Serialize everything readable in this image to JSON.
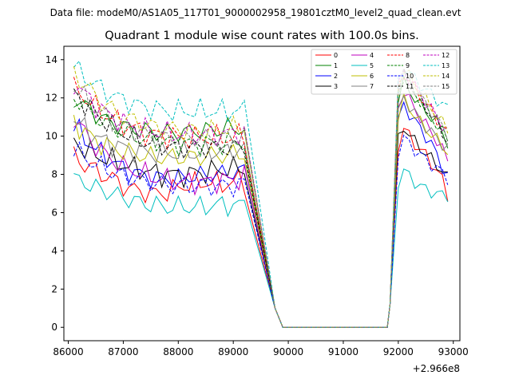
{
  "header": {
    "data_file": "Data file: modeM0/AS1A05_117T01_9000002958_19801cztM0_level2_quad_clean.evt"
  },
  "chart_data": {
    "type": "line",
    "title": "Quadrant 1 module wise count rates with 100.0s bins.",
    "xlabel": "",
    "ylabel": "",
    "x_offset_label": "+2.966e8",
    "xlim": [
      85920,
      93120
    ],
    "ylim": [
      -0.7,
      14.7
    ],
    "x_ticks": [
      86000,
      87000,
      88000,
      89000,
      90000,
      91000,
      92000,
      93000
    ],
    "x_tick_labels": [
      "86000",
      "87000",
      "88000",
      "89000",
      "90000",
      "91000",
      "92000",
      "93000"
    ],
    "y_ticks": [
      0,
      2,
      4,
      6,
      8,
      10,
      12,
      14
    ],
    "y_tick_labels": [
      "0",
      "2",
      "4",
      "6",
      "8",
      "10",
      "12",
      "14"
    ],
    "x_start": 86100,
    "x_step": 100,
    "gap": {
      "drop_start": 89700,
      "zero_from": 89900,
      "zero_to": 91800,
      "rise_end": 92000
    },
    "legend_location": "upper right",
    "series": [
      {
        "name": "0",
        "color": "#ff0000",
        "dash": "solid",
        "before": [
          9.0,
          8.7,
          8.5,
          8.4,
          8.2,
          8.0,
          7.9,
          7.8,
          7.6,
          7.4,
          7.3,
          7.2,
          7.1,
          7.1,
          7.0,
          7.0,
          7.0,
          7.1,
          7.2,
          7.3,
          7.4,
          7.5,
          7.5,
          7.5,
          7.6,
          7.6,
          7.5,
          7.5,
          7.5,
          7.6,
          7.7,
          7.7
        ],
        "after": [
          9.5,
          10.4,
          10.0,
          9.6,
          9.3,
          9.0,
          8.6,
          8.2,
          7.7,
          6.9
        ]
      },
      {
        "name": "1",
        "color": "#008000",
        "dash": "solid",
        "before": [
          12.0,
          11.8,
          11.6,
          11.4,
          11.2,
          11.0,
          10.8,
          10.7,
          10.6,
          10.5,
          10.4,
          10.4,
          10.3,
          10.3,
          10.2,
          10.2,
          10.2,
          10.2,
          10.2,
          10.2,
          10.2,
          10.2,
          10.3,
          10.3,
          10.3,
          10.3,
          10.3,
          10.4,
          10.4,
          10.4,
          10.4,
          10.4
        ],
        "after": [
          12.0,
          12.8,
          12.4,
          12.0,
          11.6,
          11.3,
          11.0,
          10.7,
          10.3,
          9.6
        ]
      },
      {
        "name": "2",
        "color": "#0000ff",
        "dash": "solid",
        "before": [
          10.5,
          10.2,
          9.9,
          9.6,
          9.3,
          9.1,
          8.9,
          8.7,
          8.5,
          8.3,
          8.2,
          8.1,
          8.0,
          7.9,
          7.9,
          7.8,
          7.8,
          7.8,
          7.8,
          7.8,
          7.8,
          7.9,
          7.9,
          7.9,
          8.0,
          8.0,
          8.0,
          8.0,
          8.1,
          8.1,
          8.1,
          8.2
        ],
        "after": [
          10.8,
          11.6,
          11.2,
          10.8,
          10.4,
          10.0,
          9.6,
          9.0,
          8.4,
          7.9
        ]
      },
      {
        "name": "3",
        "color": "#000000",
        "dash": "solid",
        "before": [
          9.8,
          9.5,
          9.3,
          9.1,
          9.0,
          8.9,
          8.8,
          8.7,
          8.6,
          8.5,
          8.4,
          8.3,
          8.3,
          8.2,
          8.1,
          8.1,
          8.0,
          8.0,
          8.0,
          8.0,
          8.0,
          8.0,
          8.1,
          8.1,
          8.1,
          8.2,
          8.2,
          8.2,
          8.3,
          8.3,
          8.3,
          8.3
        ],
        "after": [
          9.8,
          10.5,
          10.1,
          9.7,
          9.4,
          9.1,
          8.8,
          8.5,
          8.2,
          7.8
        ]
      },
      {
        "name": "4",
        "color": "#bf00bf",
        "dash": "solid",
        "before": [
          11.0,
          10.6,
          10.2,
          9.8,
          9.5,
          9.2,
          9.0,
          8.8,
          8.6,
          8.4,
          8.3,
          8.2,
          8.1,
          8.0,
          7.9,
          7.8,
          7.8,
          7.7,
          7.7,
          7.6,
          7.6,
          7.6,
          7.6,
          7.6,
          7.6,
          7.6,
          7.7,
          7.7,
          7.7,
          7.7,
          7.8,
          7.9
        ],
        "after": [
          11.5,
          12.4,
          11.9,
          11.4,
          11.0,
          10.6,
          10.2,
          9.8,
          9.3,
          8.7
        ]
      },
      {
        "name": "5",
        "color": "#00bfbf",
        "dash": "solid",
        "before": [
          7.7,
          7.7,
          7.6,
          7.4,
          7.3,
          7.2,
          7.1,
          7.0,
          6.9,
          6.8,
          6.7,
          6.6,
          6.5,
          6.5,
          6.4,
          6.4,
          6.3,
          6.3,
          6.3,
          6.3,
          6.3,
          6.3,
          6.3,
          6.3,
          6.3,
          6.4,
          6.4,
          6.4,
          6.4,
          6.4,
          6.4,
          6.4
        ],
        "after": [
          7.6,
          8.2,
          7.9,
          7.6,
          7.4,
          7.2,
          7.1,
          7.0,
          6.9,
          6.9
        ]
      },
      {
        "name": "6",
        "color": "#bfbf00",
        "dash": "solid",
        "before": [
          10.8,
          10.5,
          10.2,
          10.0,
          9.8,
          9.6,
          9.5,
          9.4,
          9.3,
          9.2,
          9.1,
          9.1,
          9.0,
          9.0,
          8.9,
          8.9,
          8.9,
          8.9,
          8.9,
          8.9,
          8.9,
          8.9,
          8.9,
          8.9,
          9.0,
          9.0,
          9.0,
          9.0,
          9.0,
          9.1,
          9.1,
          9.1
        ],
        "after": [
          11.0,
          11.9,
          11.5,
          11.1,
          10.7,
          10.4,
          10.1,
          9.8,
          9.5,
          9.2
        ]
      },
      {
        "name": "7",
        "color": "#808080",
        "dash": "solid",
        "before": [
          10.9,
          10.6,
          10.4,
          10.2,
          10.0,
          9.8,
          9.7,
          9.6,
          9.5,
          9.4,
          9.3,
          9.3,
          9.2,
          9.2,
          9.1,
          9.1,
          9.1,
          9.1,
          9.1,
          9.1,
          9.1,
          9.1,
          9.1,
          9.1,
          9.2,
          9.2,
          9.2,
          9.2,
          9.2,
          9.3,
          9.3,
          9.3
        ],
        "after": [
          11.2,
          12.0,
          11.6,
          11.2,
          10.8,
          10.5,
          10.2,
          9.9,
          9.6,
          9.3
        ]
      },
      {
        "name": "8",
        "color": "#ff0000",
        "dash": "dashed",
        "before": [
          12.5,
          12.3,
          12.0,
          11.8,
          11.5,
          11.3,
          11.1,
          10.9,
          10.8,
          10.6,
          10.5,
          10.4,
          10.3,
          10.2,
          10.1,
          10.1,
          10.0,
          10.0,
          10.0,
          9.9,
          9.9,
          9.9,
          9.9,
          9.9,
          9.9,
          9.9,
          9.9,
          9.9,
          9.9,
          10.0,
          10.0,
          10.0
        ],
        "after": [
          12.5,
          13.3,
          12.9,
          12.5,
          12.1,
          11.7,
          11.3,
          10.9,
          10.5,
          10.1
        ]
      },
      {
        "name": "9",
        "color": "#008000",
        "dash": "dashed",
        "before": [
          12.1,
          11.8,
          11.5,
          11.2,
          11.0,
          10.8,
          10.6,
          10.4,
          10.3,
          10.2,
          10.1,
          10.0,
          9.9,
          9.8,
          9.8,
          9.7,
          9.7,
          9.7,
          9.6,
          9.6,
          9.6,
          9.6,
          9.6,
          9.6,
          9.6,
          9.6,
          9.6,
          9.6,
          9.6,
          9.7,
          9.7,
          9.7
        ],
        "after": [
          12.3,
          13.1,
          12.7,
          12.3,
          11.8,
          11.4,
          11.0,
          10.6,
          10.2,
          9.8
        ]
      },
      {
        "name": "10",
        "color": "#0000ff",
        "dash": "dashed",
        "before": [
          9.3,
          9.1,
          8.9,
          8.7,
          8.5,
          8.4,
          8.3,
          8.1,
          8.0,
          7.9,
          7.8,
          7.8,
          7.7,
          7.6,
          7.6,
          7.5,
          7.5,
          7.5,
          7.4,
          7.4,
          7.4,
          7.4,
          7.4,
          7.4,
          7.4,
          7.4,
          7.4,
          7.4,
          7.4,
          7.4,
          7.5,
          7.5
        ],
        "after": [
          9.2,
          9.9,
          9.6,
          9.3,
          9.0,
          8.8,
          8.5,
          8.3,
          8.1,
          7.8
        ]
      },
      {
        "name": "11",
        "color": "#000000",
        "dash": "dashed",
        "before": [
          12.3,
          12.0,
          11.7,
          11.4,
          11.2,
          10.9,
          10.7,
          10.5,
          10.3,
          10.2,
          10.0,
          9.9,
          9.8,
          9.7,
          9.6,
          9.6,
          9.5,
          9.5,
          9.4,
          9.4,
          9.4,
          9.4,
          9.4,
          9.4,
          9.4,
          9.4,
          9.4,
          9.4,
          9.4,
          9.4,
          9.4,
          9.5
        ],
        "after": [
          12.4,
          13.2,
          12.8,
          12.3,
          11.9,
          11.5,
          11.1,
          10.7,
          10.2,
          9.7
        ]
      },
      {
        "name": "12",
        "color": "#bf00bf",
        "dash": "dashed",
        "before": [
          12.8,
          12.5,
          12.2,
          11.9,
          11.6,
          11.4,
          11.2,
          11.0,
          10.9,
          10.7,
          10.6,
          10.5,
          10.4,
          10.3,
          10.3,
          10.2,
          10.2,
          10.1,
          10.1,
          10.1,
          10.1,
          10.1,
          10.1,
          10.1,
          10.1,
          10.1,
          10.1,
          10.1,
          10.1,
          10.2,
          10.2,
          10.2
        ],
        "after": [
          12.6,
          13.4,
          13.0,
          12.6,
          12.2,
          11.8,
          11.4,
          11.0,
          10.6,
          10.2
        ]
      },
      {
        "name": "13",
        "color": "#00bfbf",
        "dash": "dashed",
        "before": [
          13.6,
          13.4,
          13.1,
          12.9,
          12.7,
          12.5,
          12.3,
          12.2,
          12.0,
          11.9,
          11.8,
          11.7,
          11.6,
          11.5,
          11.5,
          11.4,
          11.4,
          11.3,
          11.3,
          11.3,
          11.3,
          11.3,
          11.3,
          11.3,
          11.3,
          11.3,
          11.3,
          11.3,
          11.3,
          11.3,
          11.3,
          11.4
        ],
        "after": [
          12.8,
          13.6,
          13.3,
          13.0,
          12.7,
          12.4,
          12.2,
          11.9,
          11.7,
          11.4
        ]
      },
      {
        "name": "14",
        "color": "#bfbf00",
        "dash": "dashed",
        "before": [
          13.3,
          13.0,
          12.7,
          12.4,
          12.1,
          11.8,
          11.6,
          11.4,
          11.2,
          11.0,
          10.9,
          10.8,
          10.7,
          10.6,
          10.5,
          10.5,
          10.4,
          10.4,
          10.4,
          10.3,
          10.3,
          10.3,
          10.3,
          10.3,
          10.3,
          10.3,
          10.3,
          10.4,
          10.4,
          10.4,
          10.4,
          10.5
        ],
        "after": [
          12.7,
          13.5,
          13.1,
          12.7,
          12.3,
          11.9,
          11.5,
          11.1,
          10.7,
          10.3
        ]
      },
      {
        "name": "15",
        "color": "#808080",
        "dash": "dashed",
        "before": [
          12.6,
          12.3,
          12.0,
          11.7,
          11.4,
          11.2,
          11.0,
          10.8,
          10.6,
          10.5,
          10.4,
          10.3,
          10.2,
          10.1,
          10.0,
          10.0,
          9.9,
          9.9,
          9.9,
          9.9,
          9.9,
          9.9,
          9.9,
          9.9,
          9.9,
          9.9,
          9.9,
          9.9,
          9.9,
          9.9,
          10.0,
          10.0
        ],
        "after": [
          12.5,
          13.3,
          12.9,
          12.5,
          12.1,
          11.7,
          11.3,
          10.9,
          10.5,
          10.1
        ]
      }
    ]
  }
}
